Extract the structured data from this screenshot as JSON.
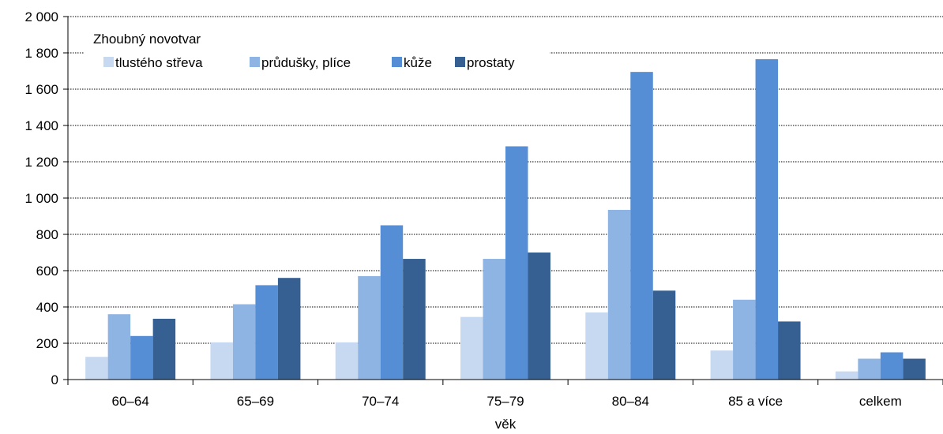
{
  "chart_data": {
    "type": "bar",
    "title": "",
    "xlabel": "věk",
    "ylabel": "",
    "ylim": [
      0,
      2000
    ],
    "yticks": [
      0,
      200,
      400,
      600,
      800,
      1000,
      1200,
      1400,
      1600,
      1800,
      2000
    ],
    "ytick_labels": [
      "0",
      "200",
      "400",
      "600",
      "800",
      "1 000",
      "1 200",
      "1 400",
      "1 600",
      "1 800",
      "2 000"
    ],
    "grid": "horizontal dotted",
    "legend_title": "Zhoubný novotvar",
    "legend_position": "top-left",
    "categories": [
      "60–64",
      "65–69",
      "70–74",
      "75–79",
      "80–84",
      "85 a více",
      "celkem"
    ],
    "series": [
      {
        "name": "tlustého střeva",
        "color": "#c6d9f1",
        "values": [
          125,
          205,
          205,
          345,
          370,
          160,
          45
        ]
      },
      {
        "name": "průdušky, plíce",
        "color": "#8eb4e3",
        "values": [
          360,
          415,
          570,
          665,
          935,
          440,
          115
        ]
      },
      {
        "name": "kůže",
        "color": "#558ed5",
        "values": [
          240,
          520,
          850,
          1285,
          1695,
          1765,
          150
        ]
      },
      {
        "name": "prostaty",
        "color": "#366092",
        "values": [
          335,
          560,
          665,
          700,
          490,
          320,
          115
        ]
      }
    ]
  }
}
